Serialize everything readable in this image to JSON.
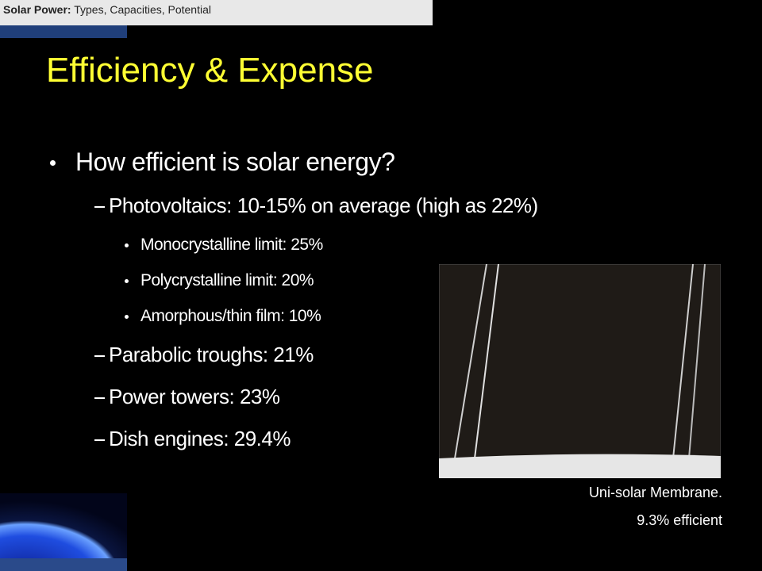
{
  "header": {
    "bold": "Solar Power:",
    "rest": " Types, Capacities, Potential"
  },
  "title": "Efficiency & Expense",
  "bullets": [
    {
      "text": "How efficient is solar energy?",
      "children": [
        {
          "text": "Photovoltaics: 10-15% on average (high as 22%)",
          "children": [
            {
              "text": "Monocrystalline limit: 25%"
            },
            {
              "text": "Polycrystalline limit: 20%"
            },
            {
              "text": "Amorphous/thin film: 10%"
            }
          ]
        },
        {
          "text": "Parabolic troughs: 21%"
        },
        {
          "text": "Power towers: 23%"
        },
        {
          "text": "Dish engines: 29.4%"
        }
      ]
    }
  ],
  "image": {
    "caption": [
      "Uni-solar Membrane.",
      "9.3% efficient"
    ]
  }
}
